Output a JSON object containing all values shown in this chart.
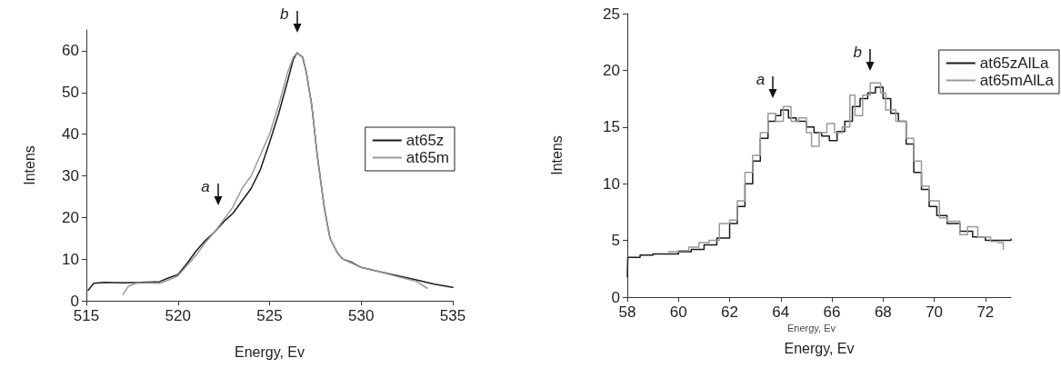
{
  "chart_data": [
    {
      "type": "line",
      "xlabel": "Energy, Ev",
      "ylabel": "Intens",
      "xlim": [
        515,
        535
      ],
      "xticks": [
        515,
        520,
        525,
        530,
        535
      ],
      "ylim": [
        0,
        65
      ],
      "yticks": [
        0,
        10,
        20,
        30,
        40,
        50,
        60
      ],
      "legend": "right",
      "grid": false,
      "annotations": [
        {
          "text": "a",
          "x": 522.2,
          "y": 18
        },
        {
          "text": "b",
          "x": 526.5,
          "y": 59.5
        }
      ],
      "series": [
        {
          "name": "at65z",
          "color": "#1a1a1a",
          "x": [
            515.1,
            515.4,
            516,
            517,
            518,
            519,
            519.5,
            520,
            520.5,
            521,
            521.5,
            522,
            522.5,
            523,
            523.5,
            524,
            524.5,
            525,
            525.5,
            526,
            526.3,
            526.5,
            526.8,
            527,
            527.3,
            527.6,
            528,
            528.3,
            528.7,
            529,
            529.5,
            530,
            531,
            532,
            533,
            534,
            535
          ],
          "values": [
            2.5,
            4.2,
            4.4,
            4.3,
            4.4,
            4.6,
            5.5,
            6.3,
            9,
            12,
            14.5,
            16.5,
            19,
            21,
            24,
            27,
            31.5,
            38,
            45,
            53,
            58,
            59.5,
            58.5,
            55,
            47,
            35,
            22,
            15,
            11.5,
            10,
            9.2,
            8,
            7,
            6,
            5,
            4,
            3.2
          ]
        },
        {
          "name": "at65m",
          "color": "#999999",
          "x": [
            517,
            517.3,
            517.7,
            518.5,
            519,
            519.5,
            520,
            520.5,
            521,
            521.5,
            522,
            522.5,
            523,
            523.5,
            524,
            524.5,
            525,
            525.5,
            526,
            526.3,
            526.5,
            526.8,
            527,
            527.3,
            527.6,
            528,
            528.3,
            528.7,
            529,
            529.5,
            530,
            531,
            532,
            533,
            533.6
          ],
          "values": [
            1.5,
            3.5,
            4.2,
            4.3,
            4.2,
            5,
            6,
            8.5,
            11,
            14,
            16.5,
            19.5,
            22.5,
            27,
            30,
            35,
            40,
            47,
            55,
            58.5,
            59.5,
            58.5,
            55,
            47,
            35,
            22,
            15,
            11.5,
            10,
            9,
            8,
            7,
            5.8,
            4.7,
            3
          ]
        }
      ]
    },
    {
      "type": "step",
      "xlabel": "Energy, Ev",
      "ylabel": "Intens",
      "xlim": [
        58,
        73
      ],
      "xticks": [
        58,
        60,
        62,
        64,
        66,
        68,
        70,
        72
      ],
      "ylim": [
        0,
        25
      ],
      "yticks": [
        0,
        5,
        10,
        15,
        20,
        25
      ],
      "legend": "top right",
      "grid": false,
      "annotations": [
        {
          "text": "a",
          "x": 63.7,
          "y": 15.8
        },
        {
          "text": "b",
          "x": 67.5,
          "y": 18.2
        },
        "Energy, Ev"
      ],
      "series": [
        {
          "name": "at65zAlLa",
          "color": "#1a1a1a",
          "x": [
            58,
            58.02,
            58.5,
            59,
            59.5,
            60,
            60.5,
            61,
            61.5,
            62,
            62.3,
            62.6,
            62.9,
            63.2,
            63.5,
            63.8,
            64,
            64.3,
            64.6,
            65,
            65.3,
            65.6,
            65.9,
            66.2,
            66.5,
            66.8,
            67.1,
            67.4,
            67.7,
            68,
            68.3,
            68.6,
            68.9,
            69.2,
            69.5,
            69.8,
            70.1,
            70.5,
            71,
            71.5,
            72,
            72.5,
            73
          ],
          "values": [
            1.8,
            3.5,
            3.7,
            3.8,
            3.8,
            4,
            4.2,
            4.6,
            5.2,
            6.5,
            8,
            10,
            12,
            14,
            15.5,
            16,
            16.5,
            15.8,
            15.5,
            15,
            14.5,
            14.2,
            13.8,
            14.6,
            15.5,
            16.8,
            17.5,
            18,
            18.5,
            17.5,
            16.2,
            15.5,
            13.5,
            11,
            9.5,
            8,
            7.2,
            6.5,
            5.8,
            5.3,
            5,
            5,
            5.1
          ]
        },
        {
          "name": "at65mAlLa",
          "color": "#999999",
          "x": [
            59.6,
            60,
            60.4,
            60.8,
            61.2,
            61.6,
            62,
            62.3,
            62.6,
            62.9,
            63.2,
            63.5,
            63.8,
            64.1,
            64.4,
            64.7,
            65,
            65.2,
            65.5,
            65.8,
            66.1,
            66.4,
            66.7,
            66.9,
            67.2,
            67.5,
            67.9,
            68.1,
            68.5,
            68.9,
            69.2,
            69.5,
            69.8,
            70.2,
            70.5,
            71,
            71.3,
            71.7,
            72.2,
            72.5,
            72.7
          ],
          "values": [
            4,
            4.1,
            4.4,
            4.8,
            5,
            6.5,
            6.8,
            8.5,
            11,
            12.5,
            14.5,
            16.2,
            15.5,
            16.8,
            15.5,
            15.8,
            14.5,
            13.3,
            14.5,
            15.3,
            14.5,
            15,
            17.8,
            16,
            17.8,
            18.9,
            18,
            16.5,
            15.5,
            14,
            12,
            9.8,
            8.5,
            7,
            6.7,
            5.5,
            6.2,
            5.3,
            4.9,
            4.8,
            4.2
          ]
        }
      ]
    }
  ]
}
